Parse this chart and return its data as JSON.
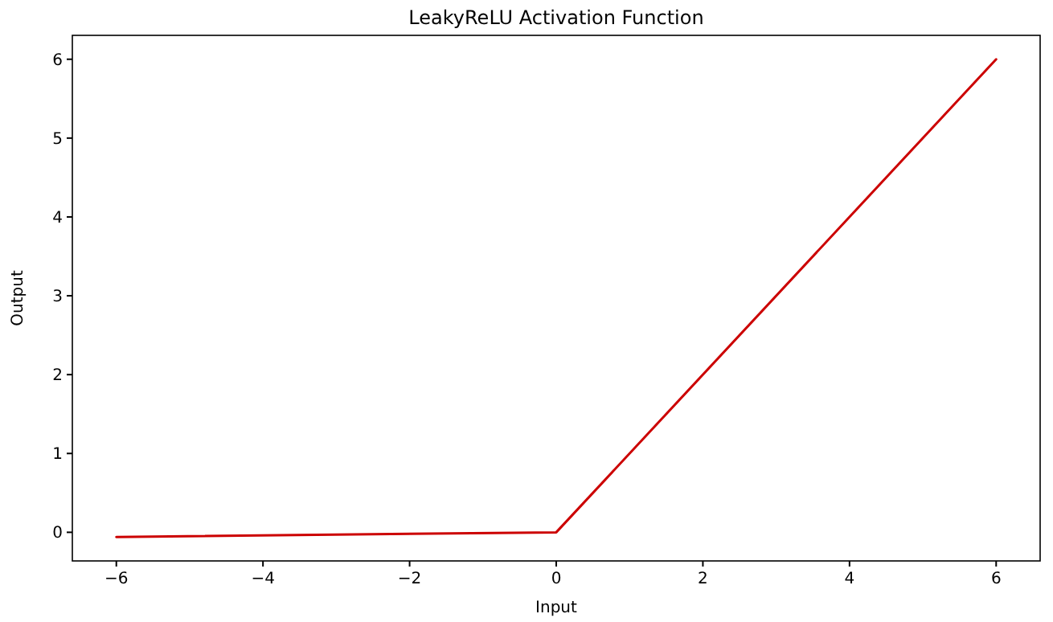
{
  "chart_data": {
    "type": "line",
    "title": "LeakyReLU Activation Function",
    "xlabel": "Input",
    "ylabel": "Output",
    "x": [
      -6,
      0,
      6
    ],
    "series": [
      {
        "color": "#cc0000",
        "values": [
          -0.06,
          0,
          6
        ]
      }
    ],
    "xlim": [
      -6.6,
      6.6
    ],
    "xticks": [
      {
        "value": -6,
        "label": "−6"
      },
      {
        "value": -4,
        "label": "−4"
      },
      {
        "value": -2,
        "label": "−2"
      },
      0,
      2,
      4,
      6
    ],
    "ylim": [
      -0.363,
      6.303
    ],
    "yticks": [
      0,
      1,
      2,
      3,
      4,
      5,
      6
    ],
    "grid": false
  }
}
